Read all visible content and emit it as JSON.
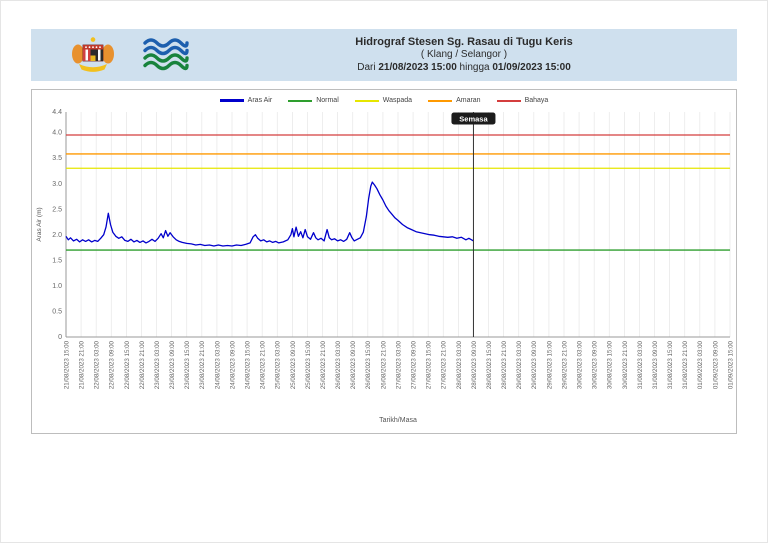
{
  "header": {
    "title": "Hidrograf Stesen Sg. Rasau di Tugu Keris",
    "subtitle": "( Klang / Selangor )",
    "period": {
      "prefix": "Dari",
      "from": "21/08/2023 15:00",
      "middle": "hingga",
      "to": "01/09/2023 15:00"
    },
    "background_color": "#cfe0ee",
    "logos": [
      "malaysia-coat-of-arms",
      "jps-waves"
    ]
  },
  "chart_data": {
    "type": "line",
    "title": "",
    "xlabel": "Tarikh/Masa",
    "ylabel": "Aras Air (m)",
    "ylim": [
      0,
      4.4
    ],
    "yticks": [
      "0",
      "0.5",
      "1.0",
      "1.5",
      "2.0",
      "2.5",
      "3.0",
      "3.5",
      "4.0",
      "4.4"
    ],
    "ytick_values": [
      0,
      0.5,
      1.0,
      1.5,
      2.0,
      2.5,
      3.0,
      3.5,
      4.0,
      4.4
    ],
    "grid": "vertical",
    "legend_position": "top-center",
    "x_labels": [
      "21/08/2023 15:00",
      "21/08/2023 21:00",
      "22/08/2023 03:00",
      "22/08/2023 09:00",
      "22/08/2023 15:00",
      "22/08/2023 21:00",
      "23/08/2023 03:00",
      "23/08/2023 09:00",
      "23/08/2023 15:00",
      "23/08/2023 21:00",
      "24/08/2023 03:00",
      "24/08/2023 09:00",
      "24/08/2023 15:00",
      "24/08/2023 21:00",
      "25/08/2023 03:00",
      "25/08/2023 09:00",
      "25/08/2023 15:00",
      "25/08/2023 21:00",
      "26/08/2023 03:00",
      "26/08/2023 09:00",
      "26/08/2023 15:00",
      "26/08/2023 21:00",
      "27/08/2023 03:00",
      "27/08/2023 09:00",
      "27/08/2023 15:00",
      "27/08/2023 21:00",
      "28/08/2023 03:00",
      "28/08/2023 09:00",
      "28/08/2023 15:00",
      "28/08/2023 21:00",
      "29/08/2023 03:00",
      "29/08/2023 09:00",
      "29/08/2023 15:00",
      "29/08/2023 21:00",
      "30/08/2023 03:00",
      "30/08/2023 09:00",
      "30/08/2023 15:00",
      "30/08/2023 21:00",
      "31/08/2023 03:00",
      "31/08/2023 09:00",
      "31/08/2023 15:00",
      "31/08/2023 21:00",
      "01/09/2023 03:00",
      "01/09/2023 09:00",
      "01/09/2023 15:00"
    ],
    "legend": [
      {
        "label": "Aras Air",
        "color": "#0000cc",
        "thick": true
      },
      {
        "label": "Normal",
        "color": "#2e9e2e"
      },
      {
        "label": "Waspada",
        "color": "#e6e600"
      },
      {
        "label": "Amaran",
        "color": "#ff9900"
      },
      {
        "label": "Bahaya",
        "color": "#d43d3d"
      }
    ],
    "thresholds": [
      {
        "name": "Normal",
        "value": 1.7,
        "color": "#2e9e2e"
      },
      {
        "name": "Waspada",
        "value": 3.3,
        "color": "#e6e600"
      },
      {
        "name": "Amaran",
        "value": 3.58,
        "color": "#ff9900"
      },
      {
        "name": "Bahaya",
        "value": 3.95,
        "color": "#d43d3d"
      }
    ],
    "series": [
      {
        "name": "Aras Air",
        "color": "#0000cc",
        "x_unit": "tick-index (1 tick = 6 hours from 21/08/2023 15:00)",
        "points": [
          [
            0,
            1.97
          ],
          [
            0.15,
            1.9
          ],
          [
            0.3,
            1.94
          ],
          [
            0.5,
            1.88
          ],
          [
            0.7,
            1.91
          ],
          [
            0.9,
            1.86
          ],
          [
            1.1,
            1.9
          ],
          [
            1.3,
            1.87
          ],
          [
            1.5,
            1.9
          ],
          [
            1.7,
            1.86
          ],
          [
            1.9,
            1.89
          ],
          [
            2.1,
            1.87
          ],
          [
            2.3,
            1.93
          ],
          [
            2.5,
            2.0
          ],
          [
            2.65,
            2.15
          ],
          [
            2.8,
            2.42
          ],
          [
            2.95,
            2.2
          ],
          [
            3.1,
            2.05
          ],
          [
            3.3,
            1.97
          ],
          [
            3.5,
            1.93
          ],
          [
            3.7,
            1.96
          ],
          [
            3.9,
            1.89
          ],
          [
            4.1,
            1.87
          ],
          [
            4.3,
            1.91
          ],
          [
            4.5,
            1.86
          ],
          [
            4.7,
            1.89
          ],
          [
            4.9,
            1.85
          ],
          [
            5.1,
            1.88
          ],
          [
            5.3,
            1.84
          ],
          [
            5.5,
            1.87
          ],
          [
            5.7,
            1.91
          ],
          [
            5.9,
            1.87
          ],
          [
            6.1,
            1.93
          ],
          [
            6.3,
            2.02
          ],
          [
            6.45,
            1.94
          ],
          [
            6.6,
            2.08
          ],
          [
            6.75,
            1.97
          ],
          [
            6.9,
            2.04
          ],
          [
            7.1,
            1.96
          ],
          [
            7.3,
            1.9
          ],
          [
            7.5,
            1.87
          ],
          [
            7.7,
            1.85
          ],
          [
            8,
            1.83
          ],
          [
            8.3,
            1.82
          ],
          [
            8.6,
            1.8
          ],
          [
            8.9,
            1.81
          ],
          [
            9.2,
            1.79
          ],
          [
            9.5,
            1.8
          ],
          [
            9.8,
            1.78
          ],
          [
            10.1,
            1.8
          ],
          [
            10.4,
            1.78
          ],
          [
            10.7,
            1.79
          ],
          [
            11,
            1.78
          ],
          [
            11.3,
            1.8
          ],
          [
            11.6,
            1.79
          ],
          [
            11.9,
            1.81
          ],
          [
            12.2,
            1.84
          ],
          [
            12.4,
            1.96
          ],
          [
            12.55,
            2.0
          ],
          [
            12.7,
            1.93
          ],
          [
            12.9,
            1.88
          ],
          [
            13.1,
            1.9
          ],
          [
            13.3,
            1.86
          ],
          [
            13.5,
            1.88
          ],
          [
            13.7,
            1.85
          ],
          [
            13.9,
            1.87
          ],
          [
            14.1,
            1.84
          ],
          [
            14.4,
            1.86
          ],
          [
            14.7,
            1.9
          ],
          [
            14.9,
            2.0
          ],
          [
            15,
            2.12
          ],
          [
            15.1,
            1.96
          ],
          [
            15.25,
            2.15
          ],
          [
            15.4,
            1.97
          ],
          [
            15.55,
            2.06
          ],
          [
            15.7,
            1.94
          ],
          [
            15.85,
            2.1
          ],
          [
            16,
            1.96
          ],
          [
            16.2,
            1.91
          ],
          [
            16.4,
            2.04
          ],
          [
            16.55,
            1.94
          ],
          [
            16.7,
            1.9
          ],
          [
            16.9,
            1.93
          ],
          [
            17.1,
            1.88
          ],
          [
            17.3,
            2.1
          ],
          [
            17.45,
            1.94
          ],
          [
            17.6,
            1.9
          ],
          [
            17.8,
            1.92
          ],
          [
            18,
            1.88
          ],
          [
            18.2,
            1.9
          ],
          [
            18.4,
            1.87
          ],
          [
            18.6,
            1.91
          ],
          [
            18.8,
            2.04
          ],
          [
            18.95,
            1.94
          ],
          [
            19.1,
            1.88
          ],
          [
            19.3,
            1.91
          ],
          [
            19.5,
            1.94
          ],
          [
            19.7,
            2.05
          ],
          [
            19.9,
            2.35
          ],
          [
            20.05,
            2.7
          ],
          [
            20.2,
            2.95
          ],
          [
            20.3,
            3.03
          ],
          [
            20.45,
            2.97
          ],
          [
            20.6,
            2.9
          ],
          [
            20.8,
            2.78
          ],
          [
            21,
            2.68
          ],
          [
            21.2,
            2.56
          ],
          [
            21.4,
            2.47
          ],
          [
            21.6,
            2.4
          ],
          [
            21.8,
            2.33
          ],
          [
            22,
            2.28
          ],
          [
            22.3,
            2.2
          ],
          [
            22.6,
            2.14
          ],
          [
            22.9,
            2.1
          ],
          [
            23.2,
            2.06
          ],
          [
            23.5,
            2.04
          ],
          [
            23.8,
            2.02
          ],
          [
            24.1,
            2.0
          ],
          [
            24.4,
            1.99
          ],
          [
            24.7,
            1.97
          ],
          [
            25,
            1.96
          ],
          [
            25.3,
            1.95
          ],
          [
            25.6,
            1.96
          ],
          [
            25.9,
            1.93
          ],
          [
            26.2,
            1.95
          ],
          [
            26.5,
            1.9
          ],
          [
            26.7,
            1.93
          ],
          [
            27,
            1.88
          ]
        ]
      }
    ],
    "current_marker": {
      "label": "Semasa",
      "x_index": 27,
      "x_label": "28/08/2023 09:00",
      "color": "#333333"
    }
  }
}
